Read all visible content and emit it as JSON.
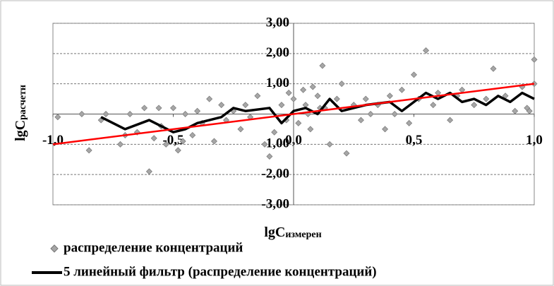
{
  "chart_data": {
    "type": "scatter",
    "xlabel": "lgC",
    "xlabel_sub": "измерен",
    "ylabel": "lgC",
    "ylabel_sub": "расчетн",
    "xlim": [
      -1,
      1
    ],
    "ylim": [
      -3,
      3
    ],
    "xticks": [
      {
        "value": -1,
        "label": "-1,0"
      },
      {
        "value": -0.5,
        "label": "-0,5"
      },
      {
        "value": 0,
        "label": "0,0"
      },
      {
        "value": 0.5,
        "label": "0,5"
      },
      {
        "value": 1,
        "label": "1,0"
      }
    ],
    "yticks": [
      {
        "value": -3,
        "label": "-3,00"
      },
      {
        "value": -2,
        "label": "-2,00"
      },
      {
        "value": -1,
        "label": "-1,00"
      },
      {
        "value": 1,
        "label": "1,00"
      },
      {
        "value": 2,
        "label": "2,00"
      },
      {
        "value": 3,
        "label": "3,00"
      }
    ],
    "grid": true,
    "series": [
      {
        "name": "распределение концентраций",
        "color": "#a6a6a6",
        "kind": "points",
        "x": [
          -0.98,
          -0.88,
          -0.85,
          -0.8,
          -0.78,
          -0.72,
          -0.7,
          -0.68,
          -0.65,
          -0.62,
          -0.6,
          -0.58,
          -0.56,
          -0.55,
          -0.53,
          -0.5,
          -0.48,
          -0.46,
          -0.45,
          -0.42,
          -0.4,
          -0.38,
          -0.35,
          -0.33,
          -0.3,
          -0.28,
          -0.25,
          -0.22,
          -0.2,
          -0.18,
          -0.15,
          -0.12,
          -0.1,
          -0.08,
          -0.05,
          -0.03,
          -0.02,
          0.0,
          0.02,
          0.04,
          0.05,
          0.07,
          0.08,
          0.1,
          0.12,
          0.13,
          0.15,
          0.18,
          0.2,
          0.22,
          0.25,
          0.28,
          0.3,
          0.32,
          0.35,
          0.38,
          0.4,
          0.42,
          0.45,
          0.48,
          0.5,
          0.52,
          0.55,
          0.58,
          0.6,
          0.65,
          0.68,
          0.7,
          0.75,
          0.8,
          0.83,
          0.88,
          0.92,
          0.95,
          0.97,
          1.0,
          1.0,
          0.98,
          0.06,
          0.11
        ],
        "values": [
          -0.1,
          0.0,
          -1.2,
          -0.2,
          0.0,
          -1.0,
          -0.7,
          0.0,
          -0.6,
          0.2,
          -1.9,
          -0.8,
          0.2,
          -0.4,
          -1.0,
          0.2,
          -1.2,
          -0.9,
          0.0,
          -0.7,
          0.1,
          -0.3,
          0.5,
          -0.9,
          0.3,
          -0.2,
          0.1,
          -0.5,
          0.3,
          -0.1,
          0.6,
          -1.0,
          -1.4,
          -0.6,
          0.3,
          -0.2,
          0.7,
          0.5,
          -0.3,
          0.8,
          0.3,
          -0.5,
          0.9,
          0.6,
          1.6,
          0.2,
          -1.0,
          0.5,
          1.0,
          -1.3,
          0.3,
          -0.2,
          0.5,
          0.0,
          0.3,
          -0.5,
          0.6,
          0.0,
          0.8,
          -0.3,
          1.3,
          0.5,
          2.1,
          0.3,
          0.7,
          -0.2,
          0.6,
          0.8,
          0.3,
          0.5,
          1.5,
          0.6,
          0.1,
          0.9,
          0.2,
          1.0,
          1.8,
          0.1,
          0.0,
          0.2
        ]
      },
      {
        "name": "5 линейный фильтр (распределение концентраций)",
        "color": "#000000",
        "kind": "line",
        "x": [
          -0.8,
          -0.7,
          -0.6,
          -0.5,
          -0.45,
          -0.4,
          -0.3,
          -0.25,
          -0.2,
          -0.1,
          -0.05,
          0.0,
          0.05,
          0.1,
          0.15,
          0.2,
          0.3,
          0.4,
          0.45,
          0.5,
          0.55,
          0.6,
          0.65,
          0.7,
          0.75,
          0.8,
          0.85,
          0.9,
          0.95,
          1.0
        ],
        "values": [
          -0.1,
          -0.5,
          -0.2,
          -0.6,
          -0.5,
          -0.3,
          -0.1,
          0.2,
          0.1,
          0.2,
          -0.3,
          0.1,
          0.2,
          0.0,
          0.5,
          0.1,
          0.3,
          0.4,
          0.1,
          0.4,
          0.7,
          0.5,
          0.7,
          0.4,
          0.5,
          0.3,
          0.6,
          0.4,
          0.7,
          0.5
        ]
      }
    ],
    "trendline": {
      "color": "#ff0000",
      "x": [
        -1,
        1
      ],
      "values": [
        -1,
        1
      ]
    }
  }
}
